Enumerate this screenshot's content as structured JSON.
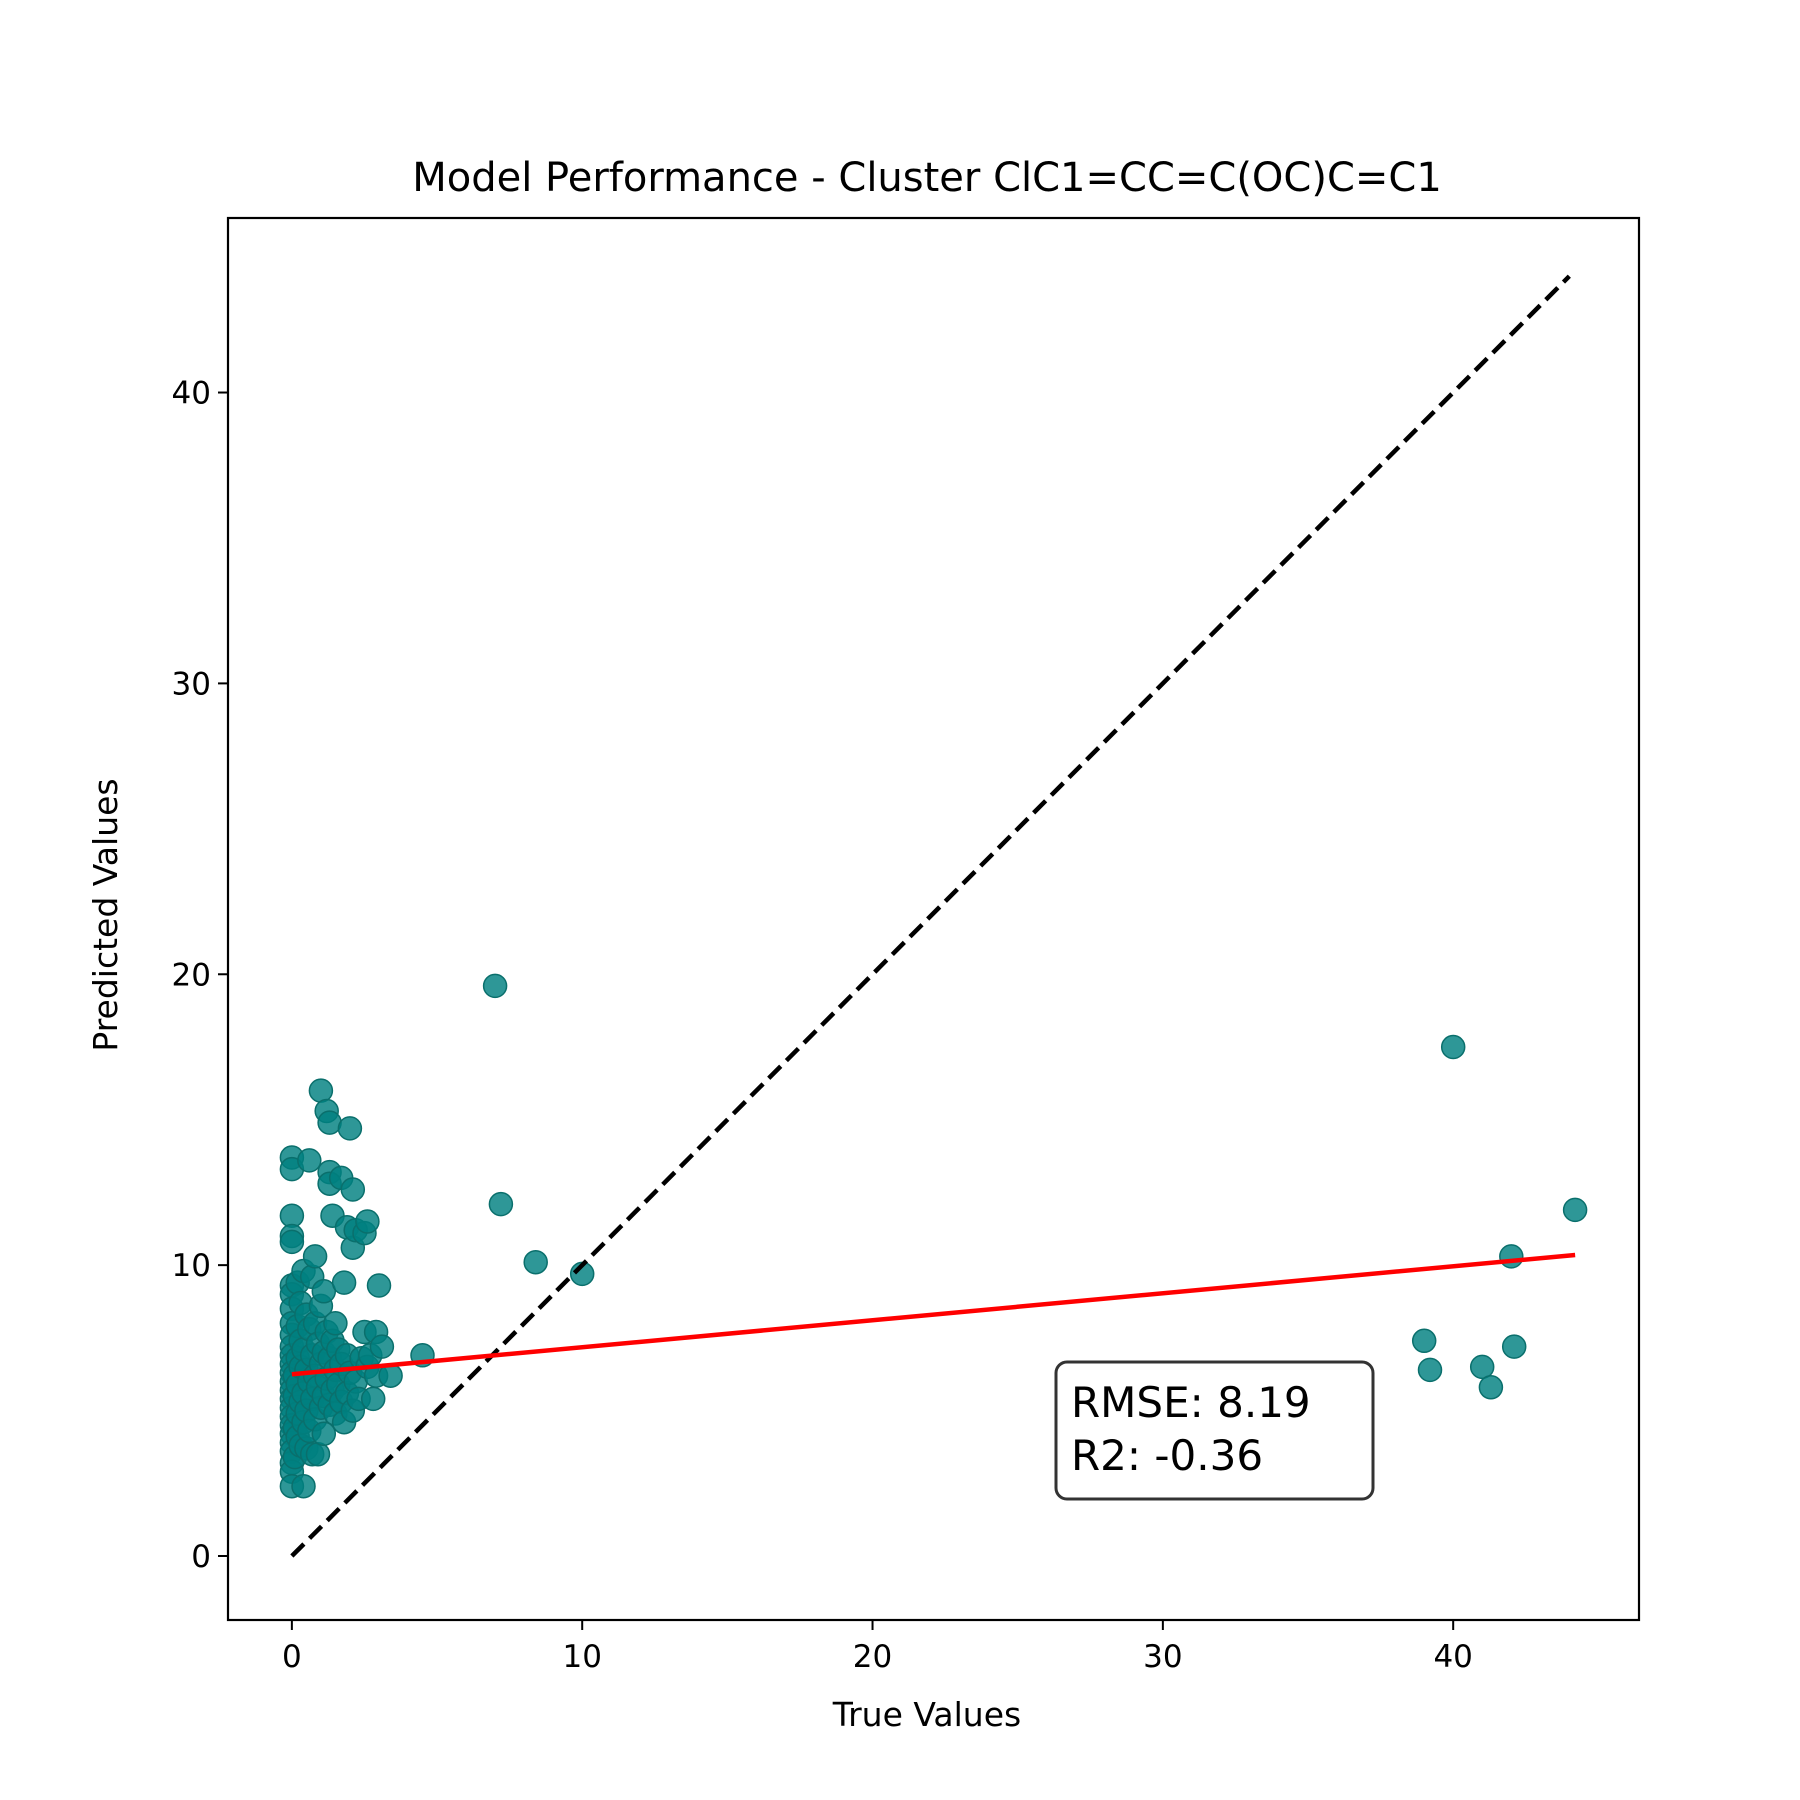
{
  "chart_data": {
    "type": "scatter",
    "title": "Model Performance - Cluster ClC1=CC=C(OC)C=C1",
    "xlabel": "True Values",
    "ylabel": "Predicted Values",
    "xlim": [
      -2.2,
      46.4
    ],
    "ylim": [
      -2.2,
      46.0
    ],
    "xticks": [
      0,
      10,
      20,
      30,
      40
    ],
    "yticks": [
      0,
      10,
      20,
      30,
      40
    ],
    "grid": false,
    "colors": {
      "points": "#008080",
      "points_edge": "#0a6f6c",
      "identity_line": "#000000",
      "fit_line": "#ff0000",
      "frame": "#000000"
    },
    "series": [
      {
        "kind": "points",
        "points": [
          [
            0.0,
            13.7
          ],
          [
            0.0,
            13.3
          ],
          [
            0.0,
            11.7
          ],
          [
            0.0,
            11.0
          ],
          [
            0.0,
            10.8
          ],
          [
            0.0,
            9.3
          ],
          [
            0.0,
            9.0
          ],
          [
            0.0,
            8.5
          ],
          [
            0.0,
            8.0
          ],
          [
            0.0,
            7.6
          ],
          [
            0.0,
            7.2
          ],
          [
            0.0,
            6.9
          ],
          [
            0.0,
            6.6
          ],
          [
            0.0,
            6.3
          ],
          [
            0.0,
            6.0
          ],
          [
            0.0,
            5.7
          ],
          [
            0.0,
            5.4
          ],
          [
            0.0,
            5.1
          ],
          [
            0.0,
            4.8
          ],
          [
            0.0,
            4.5
          ],
          [
            0.0,
            4.2
          ],
          [
            0.0,
            3.9
          ],
          [
            0.0,
            3.6
          ],
          [
            0.0,
            3.2
          ],
          [
            0.0,
            2.9
          ],
          [
            0.0,
            2.4
          ],
          [
            0.1,
            6.2
          ],
          [
            0.1,
            5.5
          ],
          [
            0.1,
            4.4
          ],
          [
            0.1,
            3.4
          ],
          [
            0.2,
            9.4
          ],
          [
            0.2,
            7.9
          ],
          [
            0.2,
            6.8
          ],
          [
            0.2,
            5.9
          ],
          [
            0.2,
            4.9
          ],
          [
            0.2,
            4.1
          ],
          [
            0.3,
            8.7
          ],
          [
            0.3,
            7.4
          ],
          [
            0.3,
            6.5
          ],
          [
            0.3,
            5.3
          ],
          [
            0.3,
            3.8
          ],
          [
            0.4,
            2.4
          ],
          [
            0.4,
            9.8
          ],
          [
            0.4,
            7.1
          ],
          [
            0.4,
            5.6
          ],
          [
            0.4,
            4.6
          ],
          [
            0.5,
            8.3
          ],
          [
            0.5,
            6.4
          ],
          [
            0.5,
            5.0
          ],
          [
            0.5,
            3.7
          ],
          [
            0.6,
            13.6
          ],
          [
            0.6,
            7.8
          ],
          [
            0.6,
            6.0
          ],
          [
            0.6,
            4.3
          ],
          [
            0.7,
            9.6
          ],
          [
            0.7,
            6.9
          ],
          [
            0.7,
            5.4
          ],
          [
            0.7,
            3.5
          ],
          [
            0.8,
            10.3
          ],
          [
            0.8,
            8.0
          ],
          [
            0.8,
            6.2
          ],
          [
            0.8,
            4.7
          ],
          [
            0.9,
            7.3
          ],
          [
            0.9,
            5.8
          ],
          [
            0.9,
            3.5
          ],
          [
            1.0,
            16.0
          ],
          [
            1.0,
            8.6
          ],
          [
            1.0,
            6.6
          ],
          [
            1.0,
            5.1
          ],
          [
            1.1,
            9.1
          ],
          [
            1.1,
            7.0
          ],
          [
            1.1,
            5.5
          ],
          [
            1.1,
            4.2
          ],
          [
            1.2,
            15.3
          ],
          [
            1.2,
            7.7
          ],
          [
            1.2,
            6.1
          ],
          [
            1.3,
            14.9
          ],
          [
            1.3,
            13.2
          ],
          [
            1.3,
            12.8
          ],
          [
            1.3,
            6.8
          ],
          [
            1.3,
            5.2
          ],
          [
            1.4,
            11.7
          ],
          [
            1.4,
            7.4
          ],
          [
            1.4,
            5.7
          ],
          [
            1.5,
            8.0
          ],
          [
            1.5,
            6.4
          ],
          [
            1.5,
            4.9
          ],
          [
            1.6,
            7.1
          ],
          [
            1.6,
            5.9
          ],
          [
            1.7,
            13.0
          ],
          [
            1.7,
            6.6
          ],
          [
            1.7,
            5.3
          ],
          [
            1.8,
            9.4
          ],
          [
            1.8,
            4.6
          ],
          [
            1.9,
            11.3
          ],
          [
            1.9,
            6.9
          ],
          [
            1.9,
            5.6
          ],
          [
            2.0,
            14.7
          ],
          [
            2.0,
            6.3
          ],
          [
            2.1,
            12.6
          ],
          [
            2.1,
            10.6
          ],
          [
            2.1,
            5.0
          ],
          [
            2.2,
            11.2
          ],
          [
            2.2,
            6.0
          ],
          [
            2.3,
            5.4
          ],
          [
            2.4,
            6.8
          ],
          [
            2.5,
            11.1
          ],
          [
            2.5,
            7.7
          ],
          [
            2.6,
            11.5
          ],
          [
            2.6,
            6.5
          ],
          [
            2.7,
            6.9
          ],
          [
            2.8,
            5.4
          ],
          [
            2.9,
            7.7
          ],
          [
            2.9,
            6.2
          ],
          [
            3.0,
            9.3
          ],
          [
            3.1,
            7.2
          ],
          [
            3.4,
            6.2
          ],
          [
            4.5,
            6.9
          ],
          [
            7.0,
            19.6
          ],
          [
            7.2,
            12.1
          ],
          [
            8.4,
            10.1
          ],
          [
            10.0,
            9.7
          ],
          [
            39.0,
            7.4
          ],
          [
            39.2,
            6.4
          ],
          [
            40.0,
            17.5
          ],
          [
            41.0,
            6.5
          ],
          [
            41.3,
            5.8
          ],
          [
            42.0,
            10.3
          ],
          [
            42.1,
            7.2
          ],
          [
            44.2,
            11.9
          ]
        ]
      },
      {
        "kind": "identity-line",
        "x": [
          0.0,
          44.0
        ],
        "y": [
          0.0,
          44.0
        ]
      },
      {
        "kind": "fit-line",
        "x": [
          0.0,
          44.2
        ],
        "y": [
          6.25,
          10.35
        ]
      }
    ],
    "stats": {
      "rmse": "RMSE: 8.19",
      "r2": "R2: -0.36"
    }
  }
}
